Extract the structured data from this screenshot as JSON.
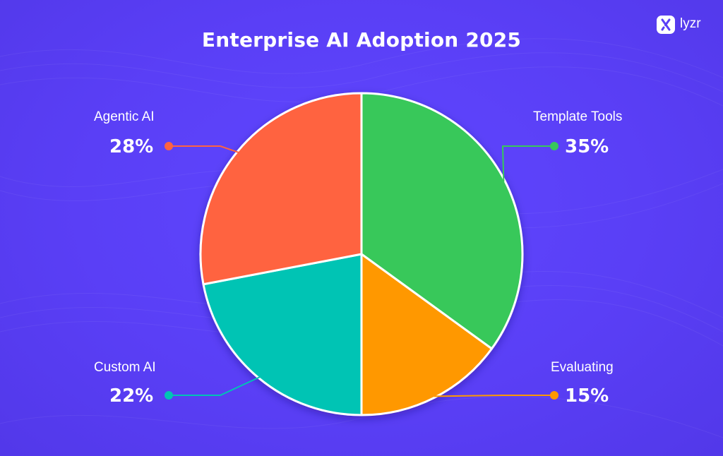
{
  "brand": {
    "name": "lyzr"
  },
  "chart_data": {
    "type": "pie",
    "title": "Enterprise AI Adoption 2025",
    "slices": [
      {
        "label": "Template Tools",
        "value": 35,
        "value_label": "35%",
        "color": "#37c85a"
      },
      {
        "label": "Evaluating",
        "value": 15,
        "value_label": "15%",
        "color": "#ff9800"
      },
      {
        "label": "Custom AI",
        "value": 22,
        "value_label": "22%",
        "color": "#00c4b4"
      },
      {
        "label": "Agentic AI",
        "value": 28,
        "value_label": "28%",
        "color": "#ff6340"
      }
    ],
    "start_angle": "12 o'clock",
    "direction": "clockwise",
    "slice_border_color": "#ffffff",
    "background_color": "#5a3ff6"
  }
}
